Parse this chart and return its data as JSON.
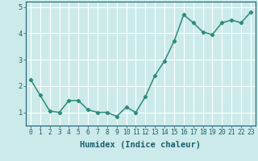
{
  "x": [
    0,
    1,
    2,
    3,
    4,
    5,
    6,
    7,
    8,
    9,
    10,
    11,
    12,
    13,
    14,
    15,
    16,
    17,
    18,
    19,
    20,
    21,
    22,
    23
  ],
  "y": [
    2.25,
    1.65,
    1.05,
    1.0,
    1.45,
    1.45,
    1.1,
    1.0,
    1.0,
    0.85,
    1.2,
    1.0,
    1.6,
    2.4,
    2.95,
    3.7,
    4.7,
    4.4,
    4.05,
    3.95,
    4.4,
    4.5,
    4.4,
    4.8
  ],
  "line_color": "#2d8b7a",
  "marker": "D",
  "marker_size": 2.2,
  "bg_color": "#cceaea",
  "grid_color": "#ffffff",
  "xlabel": "Humidex (Indice chaleur)",
  "xlabel_color": "#1a5f6e",
  "tick_color": "#1a5f6e",
  "ylim": [
    0.5,
    5.2
  ],
  "xlim": [
    -0.5,
    23.5
  ],
  "yticks": [
    1,
    2,
    3,
    4,
    5
  ],
  "xticks": [
    0,
    1,
    2,
    3,
    4,
    5,
    6,
    7,
    8,
    9,
    10,
    11,
    12,
    13,
    14,
    15,
    16,
    17,
    18,
    19,
    20,
    21,
    22,
    23
  ],
  "xtick_labels": [
    "0",
    "1",
    "2",
    "3",
    "4",
    "5",
    "6",
    "7",
    "8",
    "9",
    "10",
    "11",
    "12",
    "13",
    "14",
    "15",
    "16",
    "17",
    "18",
    "19",
    "20",
    "21",
    "22",
    "23"
  ],
  "xlabel_fontsize": 7.5,
  "tick_fontsize": 5.8,
  "linewidth": 1.1
}
